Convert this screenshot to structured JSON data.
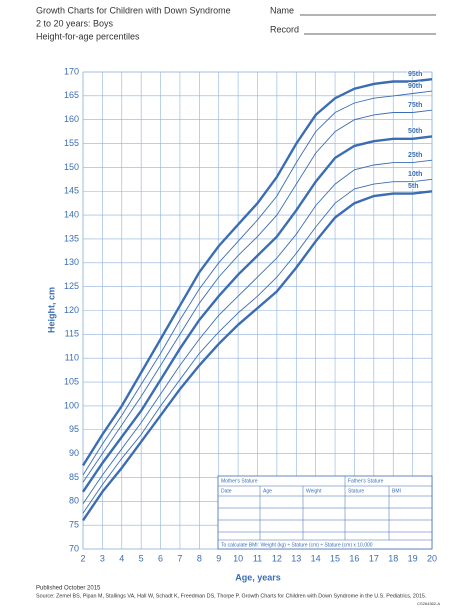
{
  "header": {
    "title_lines": [
      "Growth Charts for Children with Down Syndrome",
      "2 to 20 years: Boys",
      "Height-for-age percentiles"
    ],
    "name_label": "Name",
    "record_label": "Record"
  },
  "chart_data": {
    "type": "line",
    "y_label": "Height, cm",
    "x_label": "Age, years",
    "x": [
      2,
      3,
      4,
      5,
      6,
      7,
      8,
      9,
      10,
      11,
      12,
      13,
      14,
      15,
      16,
      17,
      18,
      19,
      20
    ],
    "xlim": [
      2,
      20
    ],
    "xticks": [
      2,
      3,
      4,
      5,
      6,
      7,
      8,
      9,
      10,
      11,
      12,
      13,
      14,
      15,
      16,
      17,
      18,
      19,
      20
    ],
    "ylim": [
      70,
      170
    ],
    "yticks": [
      70,
      75,
      80,
      85,
      90,
      95,
      100,
      105,
      110,
      115,
      120,
      125,
      130,
      135,
      140,
      145,
      150,
      155,
      160,
      165,
      170
    ],
    "grid": true,
    "color": "#3b6db3",
    "series": [
      {
        "name": "95th",
        "line_width": 2.4,
        "values": [
          87.5,
          94,
          100,
          107,
          114,
          121,
          128,
          133.5,
          138,
          142.5,
          148,
          155,
          161,
          164.5,
          166.5,
          167.5,
          168,
          168,
          168.5
        ]
      },
      {
        "name": "90th",
        "line_width": 0.9,
        "values": [
          85.5,
          92,
          98,
          104.5,
          111,
          118,
          124.5,
          130,
          134.5,
          139,
          144,
          151,
          157.5,
          161.5,
          163.5,
          164.5,
          165,
          165.5,
          166
        ]
      },
      {
        "name": "75th",
        "line_width": 0.9,
        "values": [
          84,
          90,
          96,
          102,
          108.5,
          115,
          121.5,
          127,
          131.5,
          135.5,
          140,
          146.5,
          153,
          157.5,
          160,
          161,
          161.5,
          161.5,
          162
        ]
      },
      {
        "name": "50th",
        "line_width": 2.4,
        "values": [
          82,
          88,
          93.5,
          99,
          105.5,
          112,
          118,
          123,
          127.5,
          131.5,
          135.5,
          141,
          147,
          152,
          154.5,
          155.5,
          156,
          156,
          156.5
        ]
      },
      {
        "name": "25th",
        "line_width": 0.9,
        "values": [
          79.5,
          85.5,
          91,
          96.5,
          102.5,
          108.5,
          114,
          119,
          123,
          127,
          131,
          136,
          142,
          146.5,
          149.5,
          150.5,
          151,
          151,
          151.5
        ]
      },
      {
        "name": "10th",
        "line_width": 0.9,
        "values": [
          77.5,
          83.5,
          89,
          94,
          100,
          105.5,
          111,
          115.5,
          119.5,
          123,
          127,
          132,
          137.5,
          142.5,
          145.5,
          146.5,
          147,
          147,
          147.5
        ]
      },
      {
        "name": "5th",
        "line_width": 2.4,
        "values": [
          76,
          82,
          87,
          92.5,
          98,
          103.5,
          108.5,
          113,
          117,
          120.5,
          124,
          129,
          134.5,
          139.5,
          142.5,
          144,
          144.5,
          144.5,
          145
        ]
      }
    ]
  },
  "form": {
    "mother": "Mother's Stature",
    "father": "Father's Stature",
    "columns": [
      "Date",
      "Age",
      "Weight",
      "Stature",
      "BMI"
    ],
    "bmi_note": "To calculate BMI: Weight (kg) ÷ Stature (cm) ÷ Stature (cm) x 10,000"
  },
  "footer": {
    "published": "Published October 2015",
    "source": "Source: Zemel BS, Pipan M, Stallings VA, Hall W, Schadt K, Freedman DS, Thorpe P. Growth Charts for Children with Down Syndrome in the U.S. Pediatrics, 2015.",
    "code": "CS264362-A"
  }
}
